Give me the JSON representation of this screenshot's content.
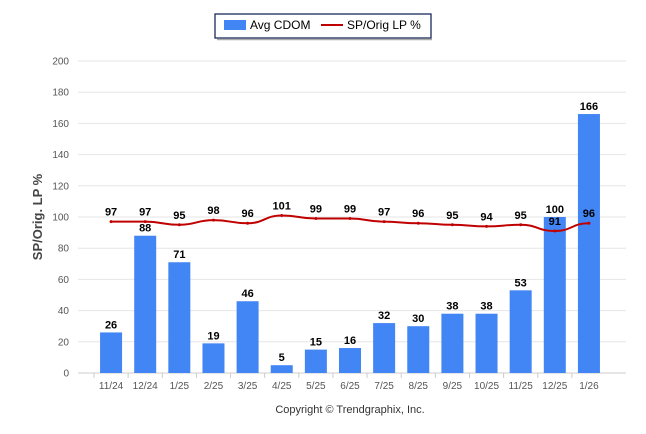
{
  "chart_data": {
    "type": "bar",
    "title": "",
    "xlabel": "",
    "ylabel": "SP/Orig. LP %",
    "ylim": [
      0,
      200
    ],
    "yticks": [
      0,
      20,
      40,
      60,
      80,
      100,
      120,
      140,
      160,
      180,
      200
    ],
    "grid": true,
    "legend_position": "top-center",
    "categories": [
      "11/24",
      "12/24",
      "1/25",
      "2/25",
      "3/25",
      "4/25",
      "5/25",
      "6/25",
      "7/25",
      "8/25",
      "9/25",
      "10/25",
      "11/25",
      "12/25",
      "1/26"
    ],
    "series": [
      {
        "name": "Avg CDOM",
        "kind": "bar",
        "color": "#4285f4",
        "values": [
          26,
          88,
          71,
          19,
          46,
          5,
          15,
          16,
          32,
          30,
          38,
          38,
          53,
          100,
          166
        ]
      },
      {
        "name": "SP/Orig LP %",
        "kind": "line",
        "color": "#c00000",
        "values": [
          97,
          97,
          95,
          98,
          96,
          101,
          99,
          99,
          97,
          96,
          95,
          94,
          95,
          91,
          96
        ]
      }
    ],
    "credit": "Copyright © Trendgraphix, Inc."
  }
}
